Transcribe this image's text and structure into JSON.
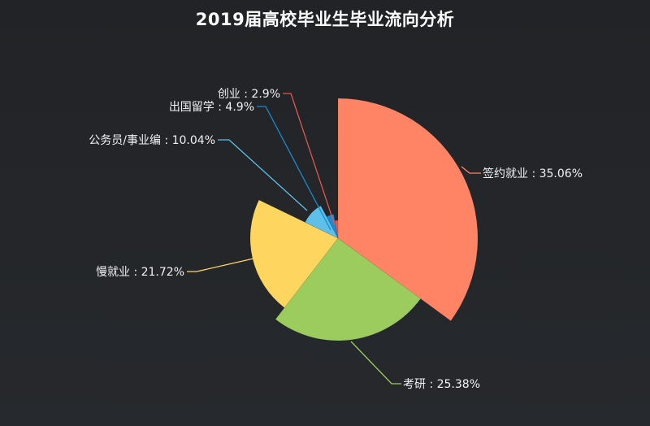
{
  "chart_data": {
    "type": "pie",
    "variant": "rose",
    "title": "2019届高校毕业生毕业流向分析",
    "series": [
      {
        "name": "签约就业",
        "value": 35.06,
        "label": "签约就业 : 35.06%",
        "color": "#ff8465"
      },
      {
        "name": "考研",
        "value": 25.38,
        "label": "考研 : 25.38%",
        "color": "#9ccb5e"
      },
      {
        "name": "慢就业",
        "value": 21.72,
        "label": "慢就业 : 21.72%",
        "color": "#fdd55f"
      },
      {
        "name": "公务员/事业编",
        "value": 10.04,
        "label": "公务员/事业编 : 10.04%",
        "color": "#5ec0e8"
      },
      {
        "name": "出国留学",
        "value": 4.9,
        "label": "出国留学 : 4.9%",
        "color": "#1b8ad1"
      },
      {
        "name": "创业",
        "value": 2.9,
        "label": "创业 : 2.9%",
        "color": "#e0584f"
      }
    ],
    "legend": "none"
  }
}
